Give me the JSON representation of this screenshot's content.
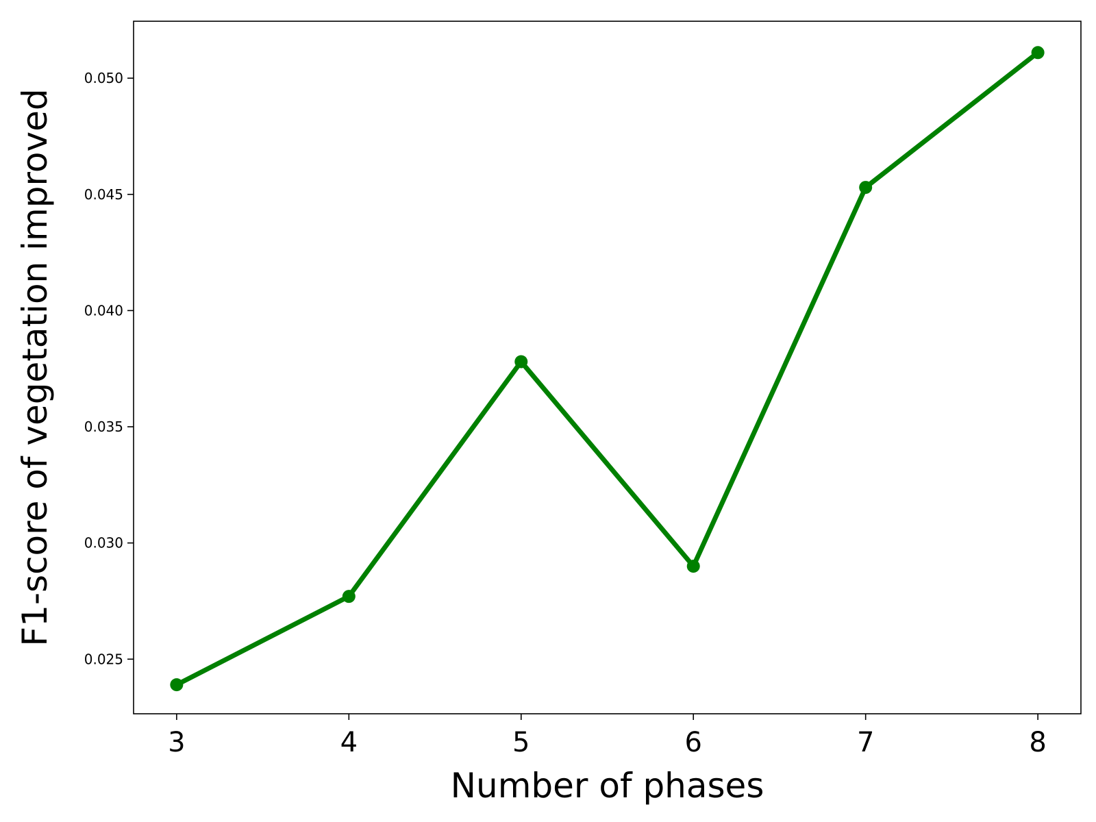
{
  "chart_data": {
    "type": "line",
    "title": "",
    "xlabel": "Number of phases",
    "ylabel": "F1-score of vegetation improved",
    "x": [
      3,
      4,
      5,
      6,
      7,
      8
    ],
    "series": [
      {
        "values": [
          0.0239,
          0.0277,
          0.0378,
          0.029,
          0.0453,
          0.0511
        ],
        "color": "#008000"
      }
    ],
    "xticks": [
      3,
      4,
      5,
      6,
      7,
      8
    ],
    "xtick_labels": [
      "3",
      "4",
      "5",
      "6",
      "7",
      "8"
    ],
    "yticks": [
      0.025,
      0.03,
      0.035,
      0.04,
      0.045,
      0.05
    ],
    "ytick_labels": [
      "0.025",
      "0.030",
      "0.035",
      "0.040",
      "0.045",
      "0.050"
    ],
    "xlim": [
      2.75,
      8.25
    ],
    "ylim": [
      0.02265,
      0.05245
    ],
    "grid": false,
    "legend": "none",
    "marker": "circle"
  }
}
